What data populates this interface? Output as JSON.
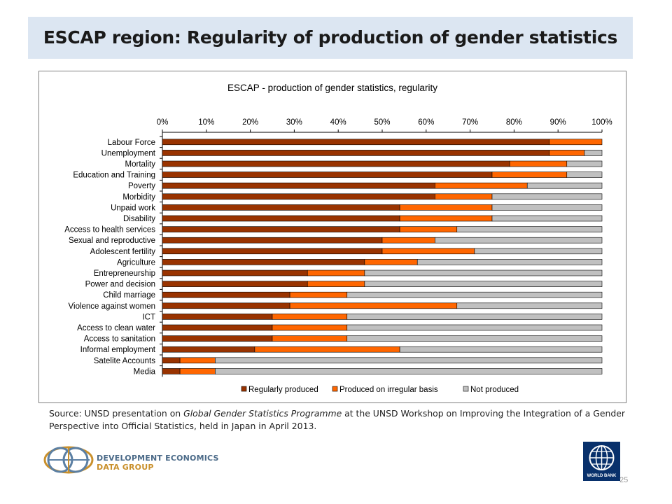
{
  "slide": {
    "title": "ESCAP region: Regularity of production of gender statistics",
    "source_prefix": "Source: UNSD presentation on ",
    "source_italic": "Global Gender Statistics Programme",
    "source_suffix": " at the UNSD Workshop on Improving the Integration of a Gender Perspective into Official Statistics, held in Japan in April 2013.",
    "page_number": "25",
    "logo_left": {
      "line1": "DEVELOPMENT ECONOMICS",
      "line2": "DATA GROUP",
      "icon": "globe-rings-icon"
    },
    "logo_right": {
      "label": "WORLD BANK",
      "icon": "globe-grid-icon"
    }
  },
  "chart_data": {
    "type": "bar",
    "orientation": "horizontal",
    "stacked": true,
    "title": "ESCAP - production of gender statistics, regularity",
    "xlim": [
      0,
      100
    ],
    "x_ticks": [
      "0%",
      "10%",
      "20%",
      "30%",
      "40%",
      "50%",
      "60%",
      "70%",
      "80%",
      "90%",
      "100%"
    ],
    "legend_position": "bottom",
    "grid": false,
    "categories": [
      "Labour Force",
      "Unemployment",
      "Mortality",
      "Education and Training",
      "Poverty",
      "Morbidity",
      "Unpaid work",
      "Disability",
      "Access to health services",
      "Sexual and reproductive",
      "Adolescent fertility",
      "Agriculture",
      "Entrepreneurship",
      "Power and decision",
      "Child marriage",
      "Violence against women",
      "ICT",
      "Access to clean water",
      "Access to sanitation",
      "Informal employment",
      "Satelite Accounts",
      "Media"
    ],
    "series": [
      {
        "name": "Regularly produced",
        "color": "#993300",
        "values": [
          88,
          88,
          79,
          75,
          62,
          62,
          54,
          54,
          54,
          50,
          50,
          46,
          33,
          33,
          29,
          29,
          25,
          25,
          25,
          21,
          4,
          4
        ]
      },
      {
        "name": "Produced on irregular basis",
        "color": "#ff6600",
        "values": [
          12,
          8,
          13,
          17,
          21,
          13,
          21,
          21,
          13,
          12,
          21,
          12,
          13,
          13,
          13,
          38,
          17,
          17,
          17,
          33,
          8,
          8
        ]
      },
      {
        "name": "Not produced",
        "color": "#c0c0c0",
        "values": [
          0,
          4,
          8,
          8,
          17,
          25,
          25,
          25,
          33,
          38,
          29,
          42,
          54,
          54,
          58,
          33,
          58,
          58,
          58,
          46,
          88,
          88
        ]
      }
    ]
  }
}
